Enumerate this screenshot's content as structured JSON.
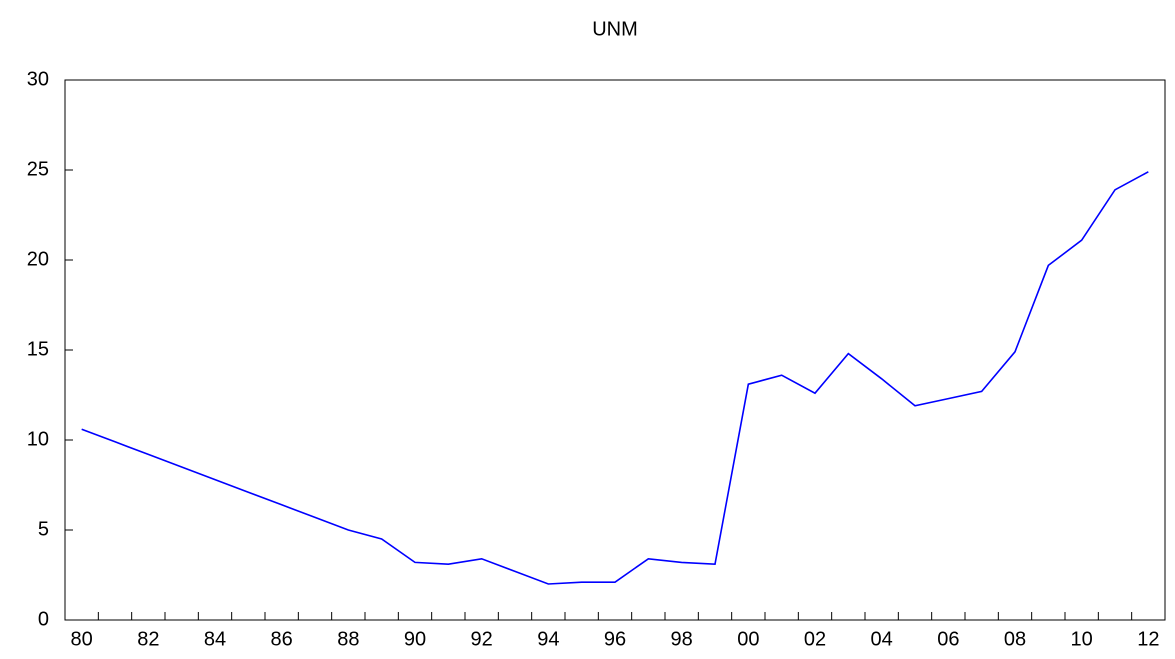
{
  "chart_data": {
    "type": "line",
    "title": "UNM",
    "categories": [
      "80",
      null,
      "82",
      null,
      "84",
      null,
      "86",
      null,
      "88",
      null,
      "90",
      null,
      "92",
      null,
      "94",
      null,
      "96",
      null,
      "98",
      null,
      "00",
      null,
      "02",
      null,
      "04",
      null,
      "06",
      null,
      "08",
      null,
      "10",
      null,
      "12"
    ],
    "series": [
      {
        "name": "UNM",
        "color": "#0000ff",
        "values": [
          10.6,
          9.9,
          9.2,
          8.5,
          7.8,
          7.1,
          6.4,
          5.7,
          5.0,
          4.5,
          3.2,
          3.1,
          3.4,
          2.7,
          2.0,
          2.1,
          2.1,
          3.4,
          3.2,
          3.1,
          13.1,
          13.6,
          12.6,
          14.8,
          13.4,
          11.9,
          12.3,
          12.7,
          14.9,
          19.7,
          21.1,
          23.9,
          24.9
        ]
      }
    ],
    "ylim": [
      0,
      30
    ],
    "yticks": [
      0,
      5,
      10,
      15,
      20,
      25,
      30
    ],
    "grid": false
  }
}
